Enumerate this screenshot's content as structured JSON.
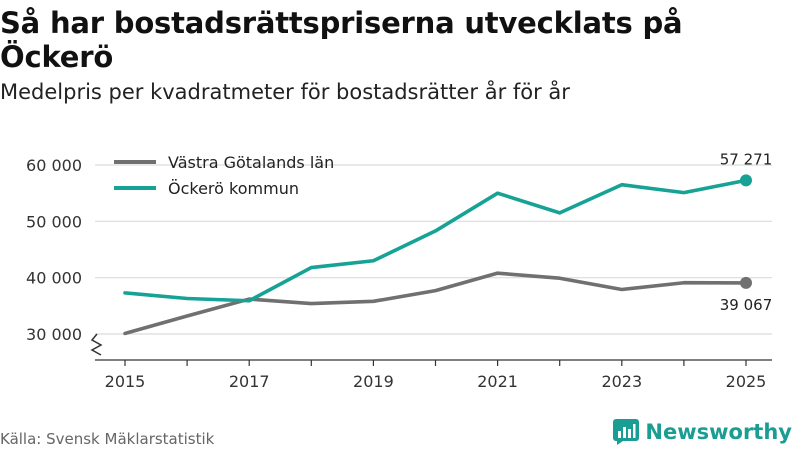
{
  "title": "Så har bostadsrättspriserna utvecklats på Öckerö",
  "subtitle": "Medelpris per kvadratmeter för bostadsrätter år för år",
  "source": "Källa: Svensk Mäklarstatistik",
  "brand": "Newsworthy",
  "colors": {
    "gray": "#707070",
    "teal": "#16a295",
    "grid": "#dcdcdc",
    "axis": "#333333"
  },
  "chart_data": {
    "type": "line",
    "title": "Så har bostadsrättspriserna utvecklats på Öckerö",
    "subtitle": "Medelpris per kvadratmeter för bostadsrätter år för år",
    "xlabel": "",
    "ylabel": "",
    "x": [
      2015,
      2016,
      2017,
      2018,
      2019,
      2020,
      2021,
      2022,
      2023,
      2024,
      2025
    ],
    "ylim": [
      30000,
      60000
    ],
    "yticks": [
      30000,
      40000,
      50000,
      60000
    ],
    "ytick_labels": [
      "30 000",
      "40 000",
      "50 000",
      "60 000"
    ],
    "xticks": [
      2015,
      2017,
      2019,
      2021,
      2023,
      2025
    ],
    "xtick_labels": [
      "2015",
      "2017",
      "2019",
      "2021",
      "2023",
      "2025"
    ],
    "grid": true,
    "legend_position": "top-left",
    "series": [
      {
        "name": "Västra Götalands län",
        "color": "#707070",
        "values": [
          30100,
          33200,
          36200,
          35400,
          35800,
          37700,
          40800,
          39900,
          37900,
          39100,
          39067
        ],
        "end_label": "39 067"
      },
      {
        "name": "Öckerö kommun",
        "color": "#16a295",
        "values": [
          37300,
          36300,
          35900,
          41800,
          43000,
          48300,
          55000,
          51500,
          56500,
          55100,
          57271
        ],
        "end_label": "57 271"
      }
    ]
  }
}
